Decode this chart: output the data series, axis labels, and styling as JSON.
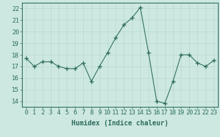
{
  "x": [
    0,
    1,
    2,
    3,
    4,
    5,
    6,
    7,
    8,
    9,
    10,
    11,
    12,
    13,
    14,
    15,
    16,
    17,
    18,
    19,
    20,
    21,
    22,
    23
  ],
  "y": [
    17.7,
    17.0,
    17.4,
    17.4,
    17.0,
    16.8,
    16.8,
    17.3,
    15.7,
    17.0,
    18.2,
    19.5,
    20.6,
    21.2,
    22.1,
    18.2,
    14.0,
    13.8,
    15.7,
    18.0,
    18.0,
    17.3,
    17.0,
    17.5
  ],
  "xlabel": "Humidex (Indice chaleur)",
  "ylim": [
    13.5,
    22.5
  ],
  "xlim": [
    -0.5,
    23.5
  ],
  "yticks": [
    14,
    15,
    16,
    17,
    18,
    19,
    20,
    21,
    22
  ],
  "xticks": [
    0,
    1,
    2,
    3,
    4,
    5,
    6,
    7,
    8,
    9,
    10,
    11,
    12,
    13,
    14,
    15,
    16,
    17,
    18,
    19,
    20,
    21,
    22,
    23
  ],
  "line_color": "#2e6b5e",
  "marker_color": "#2e6b5e",
  "bg_color": "#cce8e0",
  "grid_color": "#b8d8d0",
  "xlabel_fontsize": 7,
  "tick_fontsize": 6.5
}
